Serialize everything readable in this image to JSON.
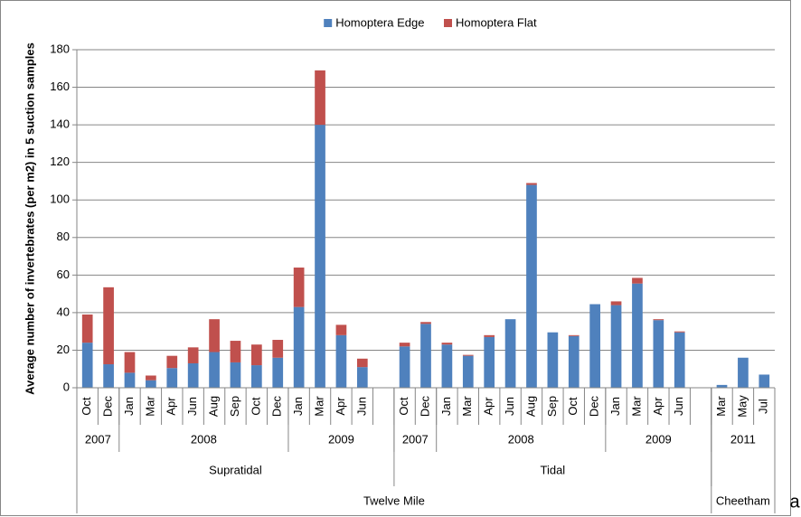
{
  "chart_data": {
    "type": "stacked_bar",
    "y_label": "Average number of invertebrates (per m2) in 5 suction samples",
    "panel_label": "a",
    "categories": [
      "Oct",
      "Dec",
      "Jan",
      "Mar",
      "Apr",
      "Jun",
      "Aug",
      "Sep",
      "Oct",
      "Dec",
      "Jan",
      "Mar",
      "Apr",
      "Jun",
      null,
      "Oct",
      "Dec",
      "Jan",
      "Mar",
      "Apr",
      "Jun",
      "Aug",
      "Sep",
      "Oct",
      "Dec",
      "Jan",
      "Mar",
      "Apr",
      "Jun",
      null,
      "Mar",
      "May",
      "Jul"
    ],
    "category_groups": [
      [
        {
          "label": "2007",
          "span": 2
        },
        {
          "label": "2008",
          "span": 8
        },
        {
          "label": "2009",
          "span": 5
        },
        {
          "label": "2007",
          "span": 2
        },
        {
          "label": "2008",
          "span": 8
        },
        {
          "label": "2009",
          "span": 5
        },
        {
          "label": "2011",
          "span": 3
        }
      ],
      [
        {
          "label": "Supratidal",
          "span": 15
        },
        {
          "label": "Tidal",
          "span": 15
        },
        {
          "label": null,
          "span": 3
        }
      ],
      [
        {
          "label": "Twelve Mile",
          "span": 30
        },
        {
          "label": "Cheetham",
          "span": 3
        }
      ]
    ],
    "series": [
      {
        "name": "Homoptera Edge",
        "color": "#4f81bd",
        "values": [
          24,
          12.5,
          8,
          4,
          10.5,
          13,
          19,
          13.5,
          12,
          16,
          43,
          140,
          28,
          11,
          null,
          22,
          34,
          23,
          17,
          27,
          36.5,
          108,
          29.5,
          27.5,
          44.5,
          44,
          55.5,
          36,
          29.5,
          null,
          1.5,
          16,
          7
        ]
      },
      {
        "name": "Homoptera Flat",
        "color": "#c0504d",
        "values": [
          15,
          41,
          11,
          2.5,
          6.5,
          8.5,
          17.5,
          11.5,
          11,
          9.5,
          21,
          29,
          5.5,
          4.5,
          null,
          2,
          1,
          1,
          0.5,
          1,
          0,
          1,
          0,
          0.5,
          0,
          2,
          3,
          0.5,
          0.5,
          null,
          0,
          0,
          0
        ]
      }
    ],
    "ylim": [
      0,
      180
    ],
    "yticks": [
      0,
      20,
      40,
      60,
      80,
      100,
      120,
      140,
      160,
      180
    ],
    "grid": true,
    "legend": "top"
  }
}
